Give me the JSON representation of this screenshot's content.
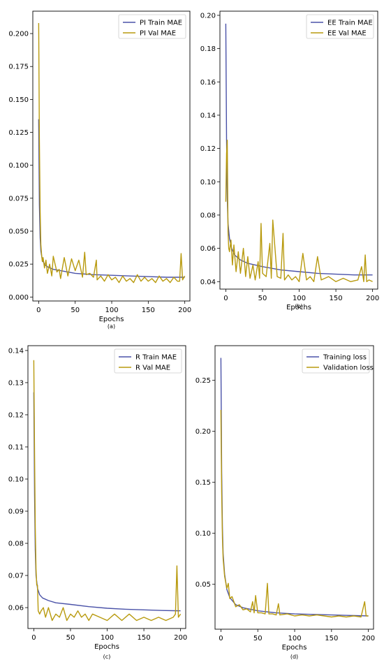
{
  "colors": {
    "train": "#4a52a8",
    "val": "#b89a0e",
    "axis": "#000000"
  },
  "chart_data": [
    {
      "type": "line",
      "caption": "(a)",
      "xlabel": "Epochs",
      "ylabel": "",
      "xlim": [
        -8,
        207
      ],
      "ylim": [
        -0.003,
        0.217
      ],
      "xticks": [
        0,
        50,
        100,
        150,
        200
      ],
      "yticks": [
        0.0,
        0.025,
        0.05,
        0.075,
        0.1,
        0.125,
        0.15,
        0.175,
        0.2
      ],
      "ytick_labels": [
        "0.000",
        "0.025",
        "0.050",
        "0.075",
        "0.100",
        "0.125",
        "0.150",
        "0.175",
        "0.200"
      ],
      "legend_position": "top-right",
      "series": [
        {
          "name": "PI Train MAE",
          "color": "train",
          "key": "train",
          "x": [
            0,
            1,
            2,
            3,
            5,
            8,
            12,
            20,
            30,
            50,
            75,
            100,
            125,
            150,
            175,
            200
          ],
          "y": [
            0.135,
            0.07,
            0.045,
            0.035,
            0.028,
            0.025,
            0.023,
            0.021,
            0.02,
            0.018,
            0.017,
            0.0165,
            0.016,
            0.0155,
            0.015,
            0.015
          ]
        },
        {
          "name": "PI Val MAE",
          "color": "val",
          "key": "val",
          "x": [
            0,
            1,
            2,
            3,
            4,
            5,
            6,
            8,
            10,
            12,
            15,
            18,
            20,
            25,
            28,
            30,
            35,
            40,
            45,
            50,
            55,
            60,
            63,
            65,
            70,
            75,
            79,
            80,
            85,
            90,
            95,
            100,
            105,
            110,
            115,
            120,
            125,
            130,
            135,
            140,
            145,
            150,
            155,
            160,
            165,
            170,
            175,
            180,
            185,
            190,
            193,
            195,
            197,
            200
          ],
          "y": [
            0.208,
            0.12,
            0.065,
            0.04,
            0.032,
            0.027,
            0.03,
            0.022,
            0.028,
            0.018,
            0.025,
            0.016,
            0.031,
            0.019,
            0.021,
            0.014,
            0.03,
            0.016,
            0.029,
            0.02,
            0.028,
            0.015,
            0.034,
            0.017,
            0.018,
            0.015,
            0.028,
            0.013,
            0.016,
            0.012,
            0.017,
            0.013,
            0.015,
            0.011,
            0.016,
            0.012,
            0.014,
            0.011,
            0.017,
            0.012,
            0.015,
            0.012,
            0.014,
            0.011,
            0.016,
            0.012,
            0.014,
            0.011,
            0.015,
            0.012,
            0.012,
            0.033,
            0.013,
            0.016
          ]
        }
      ]
    },
    {
      "type": "line",
      "caption": "(b)",
      "xlabel": "Epochs",
      "ylabel": "",
      "xlim": [
        -8,
        207
      ],
      "ylim": [
        0.0355,
        0.2025
      ],
      "xticks": [
        0,
        50,
        100,
        150,
        200
      ],
      "yticks": [
        0.04,
        0.06,
        0.08,
        0.1,
        0.12,
        0.14,
        0.16,
        0.18,
        0.2
      ],
      "ytick_labels": [
        "0.04",
        "0.06",
        "0.08",
        "0.10",
        "0.12",
        "0.14",
        "0.16",
        "0.18",
        "0.20"
      ],
      "legend_position": "top-right",
      "series": [
        {
          "name": "EE Train MAE",
          "color": "train",
          "key": "train",
          "x": [
            0,
            1,
            2,
            3,
            5,
            8,
            12,
            20,
            30,
            50,
            75,
            100,
            125,
            150,
            175,
            200
          ],
          "y": [
            0.195,
            0.125,
            0.09,
            0.075,
            0.066,
            0.06,
            0.056,
            0.053,
            0.051,
            0.049,
            0.047,
            0.046,
            0.045,
            0.0445,
            0.044,
            0.044
          ]
        },
        {
          "name": "EE Val MAE",
          "color": "val",
          "key": "val",
          "x": [
            0,
            1,
            2,
            3,
            4,
            5,
            7,
            9,
            11,
            14,
            17,
            20,
            24,
            27,
            30,
            33,
            37,
            40,
            44,
            46,
            48,
            50,
            55,
            60,
            62,
            64,
            70,
            75,
            78,
            80,
            85,
            90,
            95,
            100,
            105,
            110,
            115,
            120,
            125,
            130,
            140,
            150,
            160,
            170,
            180,
            185,
            188,
            190,
            192,
            195,
            200
          ],
          "y": [
            0.088,
            0.117,
            0.125,
            0.07,
            0.06,
            0.058,
            0.065,
            0.05,
            0.062,
            0.046,
            0.058,
            0.045,
            0.06,
            0.043,
            0.055,
            0.042,
            0.05,
            0.041,
            0.052,
            0.042,
            0.075,
            0.045,
            0.043,
            0.063,
            0.042,
            0.077,
            0.043,
            0.042,
            0.069,
            0.041,
            0.044,
            0.041,
            0.043,
            0.04,
            0.057,
            0.041,
            0.043,
            0.04,
            0.055,
            0.041,
            0.043,
            0.04,
            0.042,
            0.04,
            0.041,
            0.049,
            0.04,
            0.056,
            0.04,
            0.041,
            0.04
          ]
        }
      ]
    },
    {
      "type": "line",
      "caption": "(c)",
      "xlabel": "Epochs",
      "ylabel": "",
      "xlim": [
        -8,
        207
      ],
      "ylim": [
        0.0535,
        0.1415
      ],
      "xticks": [
        0,
        50,
        100,
        150,
        200
      ],
      "yticks": [
        0.06,
        0.07,
        0.08,
        0.09,
        0.1,
        0.11,
        0.12,
        0.13,
        0.14
      ],
      "ytick_labels": [
        "0.06",
        "0.07",
        "0.08",
        "0.09",
        "0.10",
        "0.11",
        "0.12",
        "0.13",
        "0.14"
      ],
      "legend_position": "top-right",
      "series": [
        {
          "name": "R Train MAE",
          "color": "train",
          "key": "train",
          "x": [
            0,
            1,
            2,
            3,
            5,
            8,
            12,
            20,
            30,
            50,
            75,
            100,
            125,
            150,
            175,
            200
          ],
          "y": [
            0.127,
            0.095,
            0.078,
            0.07,
            0.066,
            0.064,
            0.063,
            0.0622,
            0.0615,
            0.061,
            0.0603,
            0.0598,
            0.0595,
            0.0593,
            0.0591,
            0.059
          ]
        },
        {
          "name": "R Val MAE",
          "color": "val",
          "key": "val",
          "x": [
            0,
            1,
            2,
            3,
            4,
            5,
            6,
            8,
            10,
            13,
            16,
            20,
            25,
            30,
            35,
            40,
            45,
            50,
            55,
            60,
            65,
            70,
            75,
            80,
            90,
            100,
            110,
            120,
            130,
            140,
            150,
            160,
            170,
            180,
            190,
            193,
            195,
            197,
            200
          ],
          "y": [
            0.137,
            0.108,
            0.085,
            0.072,
            0.067,
            0.067,
            0.059,
            0.058,
            0.059,
            0.06,
            0.057,
            0.06,
            0.056,
            0.058,
            0.057,
            0.06,
            0.056,
            0.058,
            0.057,
            0.059,
            0.057,
            0.058,
            0.056,
            0.058,
            0.057,
            0.056,
            0.058,
            0.056,
            0.058,
            0.056,
            0.057,
            0.056,
            0.057,
            0.056,
            0.057,
            0.058,
            0.073,
            0.057,
            0.058
          ]
        }
      ]
    },
    {
      "type": "line",
      "caption": "(d)",
      "xlabel": "Epochs",
      "ylabel": "",
      "xlim": [
        -8,
        207
      ],
      "ylim": [
        0.006,
        0.284
      ],
      "xticks": [
        0,
        50,
        100,
        150,
        200
      ],
      "yticks": [
        0.05,
        0.1,
        0.15,
        0.2,
        0.25
      ],
      "ytick_labels": [
        "0.05",
        "0.10",
        "0.15",
        "0.20",
        "0.25"
      ],
      "legend_position": "top-right",
      "series": [
        {
          "name": "Training loss",
          "color": "train",
          "key": "train",
          "x": [
            0,
            1,
            2,
            3,
            5,
            8,
            12,
            20,
            30,
            50,
            75,
            100,
            125,
            150,
            175,
            200
          ],
          "y": [
            0.272,
            0.16,
            0.105,
            0.08,
            0.06,
            0.045,
            0.037,
            0.03,
            0.027,
            0.024,
            0.022,
            0.021,
            0.0205,
            0.02,
            0.0195,
            0.019
          ]
        },
        {
          "name": "Validation loss",
          "color": "val",
          "key": "val",
          "x": [
            0,
            1,
            2,
            3,
            5,
            8,
            10,
            12,
            15,
            20,
            25,
            30,
            35,
            40,
            43,
            45,
            47,
            50,
            55,
            60,
            63,
            65,
            70,
            75,
            78,
            80,
            90,
            100,
            110,
            120,
            130,
            140,
            150,
            160,
            170,
            180,
            190,
            193,
            195,
            197,
            200
          ],
          "y": [
            0.221,
            0.14,
            0.095,
            0.075,
            0.058,
            0.046,
            0.051,
            0.036,
            0.038,
            0.028,
            0.03,
            0.025,
            0.026,
            0.023,
            0.033,
            0.022,
            0.039,
            0.022,
            0.022,
            0.021,
            0.051,
            0.021,
            0.021,
            0.02,
            0.031,
            0.02,
            0.021,
            0.019,
            0.02,
            0.019,
            0.02,
            0.019,
            0.018,
            0.019,
            0.018,
            0.019,
            0.018,
            0.027,
            0.033,
            0.019,
            0.019
          ]
        }
      ]
    }
  ]
}
